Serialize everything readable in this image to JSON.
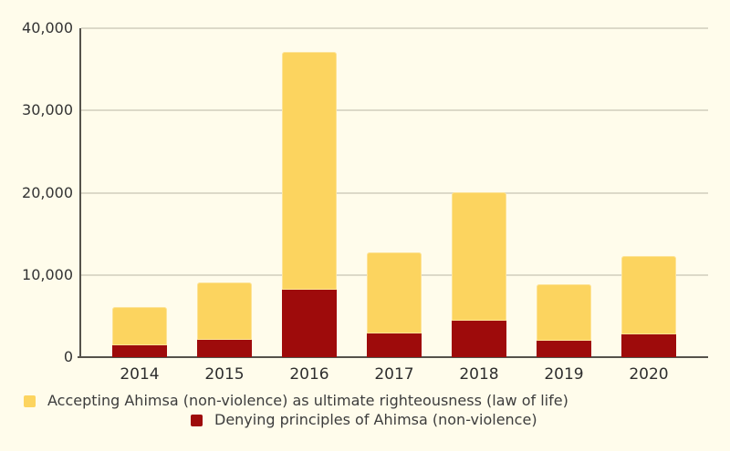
{
  "chart_data": {
    "type": "bar",
    "stacked": true,
    "title": "",
    "xlabel": "",
    "ylabel": "",
    "categories": [
      "2014",
      "2015",
      "2016",
      "2017",
      "2018",
      "2019",
      "2020"
    ],
    "series": [
      {
        "name": "Denying principles of Ahimsa (non-violence)",
        "color": "#9E0B0B",
        "values": [
          1400,
          2100,
          8200,
          2900,
          4400,
          2000,
          2800
        ]
      },
      {
        "name": "Accepting Ahimsa (non-violence) as ultimate righteousness (law of life)",
        "color": "#FCD45F",
        "values": [
          4600,
          7000,
          28900,
          9900,
          15600,
          6900,
          9500
        ]
      }
    ],
    "stacked_totals": [
      6000,
      9100,
      37100,
      12800,
      20000,
      8900,
      12300
    ],
    "ylim": [
      0,
      40000
    ],
    "yticks": [
      {
        "value": 0,
        "label": "0"
      },
      {
        "value": 10000,
        "label": "10,000"
      },
      {
        "value": 20000,
        "label": "20,000"
      },
      {
        "value": 30000,
        "label": "30,000"
      },
      {
        "value": 40000,
        "label": "40,000"
      }
    ],
    "grid": true,
    "legend_position": "bottom"
  },
  "legend": [
    {
      "label": "Accepting Ahimsa (non-violence) as ultimate righteousness (law of life)",
      "color": "#FCD45F"
    },
    {
      "label": "Denying principles of Ahimsa (non-violence)",
      "color": "#9E0B0B"
    }
  ],
  "colors": {
    "background": "#FFFCEB",
    "axis": "#55524A",
    "gridline": "#DCD9C8",
    "text": "#333333",
    "accepting": "#FCD45F",
    "denying": "#9E0B0B"
  }
}
